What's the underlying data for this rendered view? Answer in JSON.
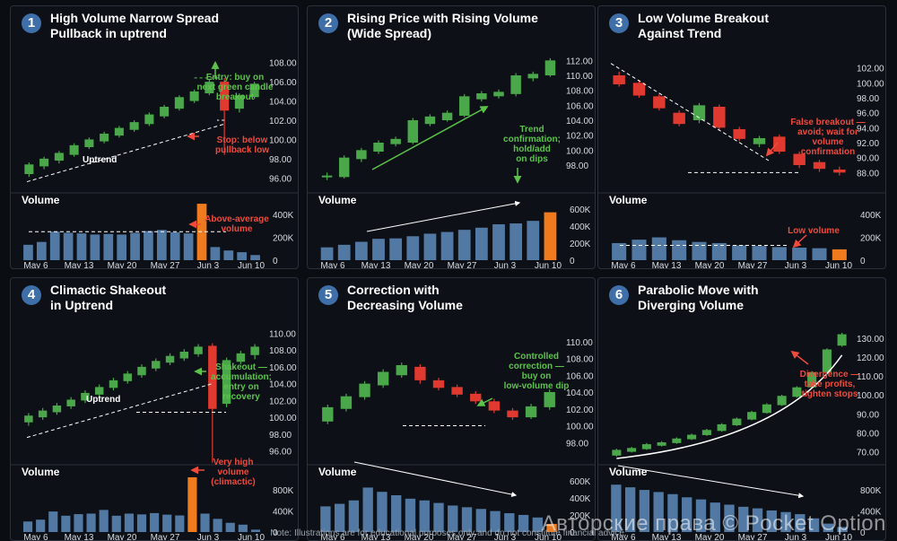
{
  "colors": {
    "up": "#4aa84a",
    "down": "#e0392f",
    "vol": "#5279a3",
    "vol_accent": "#f07a1e",
    "ann_green": "#5bc34a",
    "ann_red": "#f04a3c",
    "text": "#d8dde3"
  },
  "note": "Note: Illustrations are for educational purposes only and do not constitute financial advice.",
  "watermark": "Авторские права © Pocket Option",
  "chart_data": [
    {
      "type": "candlestick",
      "number": "1",
      "title": [
        "High Volume Narrow Spread",
        "Pullback in uptrend"
      ],
      "price_ticks": [
        "108.00",
        "106.00",
        "104.00",
        "102.00",
        "100.00",
        "98.00",
        "96.00"
      ],
      "ylim": [
        95,
        109
      ],
      "candles": [
        [
          96.4,
          97.4,
          96.1,
          97.6
        ],
        [
          97.2,
          98.0,
          96.9,
          98.2
        ],
        [
          97.8,
          98.6,
          97.5,
          98.8
        ],
        [
          98.4,
          99.4,
          98.2,
          99.6
        ],
        [
          99.2,
          100.0,
          99.0,
          100.2
        ],
        [
          99.8,
          100.6,
          99.6,
          100.8
        ],
        [
          100.4,
          101.2,
          100.2,
          101.4
        ],
        [
          101.0,
          101.8,
          100.8,
          102.0
        ],
        [
          101.6,
          102.6,
          101.4,
          102.8
        ],
        [
          102.4,
          103.4,
          102.2,
          103.6
        ],
        [
          103.2,
          104.4,
          103.0,
          104.6
        ],
        [
          104.0,
          105.0,
          103.8,
          105.2
        ],
        [
          104.8,
          106.0,
          104.6,
          106.3
        ],
        [
          106.0,
          103.0,
          98.4,
          106.4
        ],
        [
          103.2,
          104.6,
          102.8,
          104.8
        ],
        [
          104.4,
          105.8,
          104.2,
          106.0
        ]
      ],
      "volume_ticks": [
        "400K",
        "200K",
        "0"
      ],
      "volume_max": 480,
      "volume": [
        135,
        160,
        250,
        240,
        235,
        225,
        230,
        225,
        240,
        255,
        265,
        245,
        235,
        495,
        115,
        85,
        70,
        45
      ],
      "accent_bars": [
        13
      ],
      "dates": [
        "May 6",
        "May 13",
        "May 20",
        "May 27",
        "Jun 3",
        "Jun 10"
      ],
      "annotations": [
        {
          "text": [
            "Entry: buy on",
            "next green candle",
            "breakout"
          ],
          "color": "green",
          "x": 250,
          "y": 82
        },
        {
          "text": [
            "Stop: below",
            "pullback low"
          ],
          "color": "red",
          "x": 258,
          "y": 152
        },
        {
          "text": [
            "Uptrend"
          ],
          "color": "white",
          "x": 80,
          "y": 174
        },
        {
          "text": [
            "Above-average",
            "volume"
          ],
          "color": "red",
          "x": 252,
          "y": 240
        }
      ],
      "volume_label": "Volume"
    },
    {
      "type": "candlestick",
      "number": "2",
      "title": [
        "Rising Price with Rising Volume",
        "(Wide Spread)"
      ],
      "price_ticks": [
        "112.00",
        "110.00",
        "108.00",
        "106.00",
        "104.00",
        "102.00",
        "100.00",
        "98.00"
      ],
      "ylim": [
        95,
        113
      ],
      "candles": [
        [
          96.5,
          96.6,
          96.0,
          97.0
        ],
        [
          96.4,
          99.0,
          96.2,
          99.3
        ],
        [
          98.8,
          100.0,
          98.4,
          100.3
        ],
        [
          99.8,
          101.0,
          99.5,
          101.3
        ],
        [
          100.8,
          101.5,
          100.5,
          101.8
        ],
        [
          101.0,
          104.0,
          100.8,
          104.3
        ],
        [
          103.5,
          104.5,
          103.2,
          104.8
        ],
        [
          104.0,
          105.0,
          103.8,
          105.3
        ],
        [
          104.6,
          107.2,
          104.4,
          107.5
        ],
        [
          106.8,
          107.6,
          106.5,
          107.9
        ],
        [
          107.2,
          107.8,
          106.9,
          108.1
        ],
        [
          107.5,
          110.0,
          107.2,
          110.3
        ],
        [
          109.6,
          110.2,
          109.2,
          110.5
        ],
        [
          110.0,
          112.0,
          109.8,
          112.3
        ]
      ],
      "volume_ticks": [
        "600K",
        "400K",
        "200K",
        "0"
      ],
      "volume_max": 640,
      "volume": [
        150,
        180,
        215,
        250,
        255,
        280,
        310,
        330,
        355,
        380,
        420,
        430,
        460,
        560
      ],
      "accent_bars": [
        13
      ],
      "dates": [
        "May 6",
        "May 13",
        "May 20",
        "May 27",
        "Jun 3",
        "Jun 10"
      ],
      "annotations": [
        {
          "text": [
            "Trend",
            "confirmation;",
            "hold/add",
            "on dips"
          ],
          "color": "green",
          "x": 250,
          "y": 140
        }
      ],
      "volume_label": "Volume"
    },
    {
      "type": "candlestick",
      "number": "3",
      "title": [
        "Low Volume Breakout",
        "Against Trend"
      ],
      "price_ticks": [
        "102.00",
        "100.00",
        "98.00",
        "96.00",
        "94.00",
        "92.00",
        "90.00",
        "88.00"
      ],
      "ylim": [
        86,
        104
      ],
      "candles": [
        [
          101.0,
          99.8,
          99.5,
          101.5
        ],
        [
          100.0,
          98.3,
          98.0,
          100.4
        ],
        [
          98.2,
          96.6,
          96.3,
          98.5
        ],
        [
          96.0,
          94.5,
          94.2,
          96.3
        ],
        [
          95.0,
          97.0,
          94.6,
          97.3
        ],
        [
          96.8,
          94.0,
          93.6,
          97.1
        ],
        [
          93.8,
          92.5,
          92.2,
          94.1
        ],
        [
          91.8,
          92.6,
          91.4,
          92.9
        ],
        [
          92.8,
          90.8,
          90.5,
          93.1
        ],
        [
          90.5,
          89.0,
          88.6,
          90.8
        ],
        [
          89.4,
          88.5,
          88.1,
          89.7
        ],
        [
          88.4,
          88.0,
          87.6,
          88.8
        ]
      ],
      "volume_ticks": [
        "400K",
        "200K",
        "0"
      ],
      "volume_max": 480,
      "volume": [
        150,
        180,
        200,
        175,
        160,
        150,
        130,
        125,
        115,
        110,
        105,
        95
      ],
      "accent_bars": [
        11
      ],
      "dates": [
        "May 6",
        "May 13",
        "May 20",
        "May 27",
        "Jun 3",
        "Jun 10"
      ],
      "annotations": [
        {
          "text": [
            "False breakout —",
            "avoid; wait for",
            "volume",
            "confirmation"
          ],
          "color": "red",
          "x": 256,
          "y": 132
        },
        {
          "text": [
            "Low volume"
          ],
          "color": "red",
          "x": 240,
          "y": 253
        }
      ],
      "volume_label": "Volume"
    },
    {
      "type": "candlestick",
      "number": "4",
      "title": [
        "Climactic Shakeout",
        "in Uptrend"
      ],
      "price_ticks": [
        "110.00",
        "108.00",
        "106.00",
        "104.00",
        "102.00",
        "100.00",
        "98.00",
        "96.00"
      ],
      "ylim": [
        95,
        111
      ],
      "candles": [
        [
          99.4,
          100.2,
          99.0,
          100.5
        ],
        [
          100.0,
          100.8,
          99.7,
          101.1
        ],
        [
          100.6,
          101.4,
          100.3,
          101.7
        ],
        [
          101.3,
          102.1,
          101.0,
          102.4
        ],
        [
          102.0,
          102.9,
          101.7,
          103.2
        ],
        [
          102.7,
          103.6,
          102.4,
          103.9
        ],
        [
          103.5,
          104.4,
          103.2,
          104.7
        ],
        [
          104.3,
          105.2,
          104.0,
          105.5
        ],
        [
          105.0,
          106.0,
          104.7,
          106.3
        ],
        [
          105.8,
          106.7,
          105.5,
          107.0
        ],
        [
          106.5,
          107.3,
          106.2,
          107.6
        ],
        [
          107.0,
          107.8,
          106.7,
          108.1
        ],
        [
          107.5,
          108.4,
          107.2,
          108.7
        ],
        [
          108.5,
          101.0,
          94.6,
          108.8
        ],
        [
          101.6,
          106.8,
          101.2,
          107.1
        ],
        [
          106.6,
          107.6,
          106.3,
          107.9
        ],
        [
          107.4,
          108.4,
          106.9,
          108.7
        ]
      ],
      "volume_ticks": [
        "800K",
        "400K",
        "0"
      ],
      "volume_max": 1040,
      "volume": [
        200,
        235,
        390,
        310,
        340,
        350,
        420,
        310,
        350,
        335,
        360,
        330,
        315,
        1040,
        350,
        250,
        175,
        140,
        45
      ],
      "accent_bars": [
        13
      ],
      "dates": [
        "May 6",
        "May 13",
        "May 20",
        "May 27",
        "Jun 3",
        "Jun 10"
      ],
      "annotations": [
        {
          "text": [
            "Shakeout —",
            "accumulation;",
            "entry on",
            "recovery"
          ],
          "color": "green",
          "x": 257,
          "y": 102
        },
        {
          "text": [
            "Uptrend"
          ],
          "color": "white",
          "x": 84,
          "y": 138
        },
        {
          "text": [
            "Very high",
            "volume",
            "(climactic)"
          ],
          "color": "red",
          "x": 248,
          "y": 208
        }
      ],
      "volume_label": "Volume"
    },
    {
      "type": "candlestick",
      "number": "5",
      "title": [
        "Correction with",
        "Decreasing Volume"
      ],
      "price_ticks": [
        "110.00",
        "108.00",
        "106.00",
        "104.00",
        "102.00",
        "100.00",
        "98.00"
      ],
      "ylim": [
        96,
        112
      ],
      "candles": [
        [
          100.5,
          102.2,
          100.2,
          102.5
        ],
        [
          102.0,
          103.5,
          101.7,
          103.8
        ],
        [
          103.4,
          105.0,
          103.1,
          105.3
        ],
        [
          104.8,
          106.4,
          104.5,
          106.7
        ],
        [
          106.0,
          107.2,
          105.7,
          107.5
        ],
        [
          107.0,
          105.4,
          105.0,
          107.3
        ],
        [
          105.4,
          104.5,
          104.2,
          105.7
        ],
        [
          104.6,
          103.7,
          103.4,
          104.9
        ],
        [
          103.8,
          102.9,
          102.6,
          104.1
        ],
        [
          102.9,
          101.8,
          101.5,
          103.2
        ],
        [
          101.8,
          101.0,
          100.7,
          102.1
        ],
        [
          101.0,
          102.3,
          100.8,
          102.6
        ],
        [
          102.2,
          104.0,
          101.9,
          104.3
        ]
      ],
      "volume_ticks": [
        "600K",
        "400K",
        "200K",
        "0"
      ],
      "volume_max": 640,
      "volume": [
        300,
        330,
        370,
        520,
        470,
        430,
        390,
        370,
        340,
        310,
        290,
        270,
        245,
        220,
        200,
        170,
        95
      ],
      "accent_bars": [
        16
      ],
      "dates": [
        "May 6",
        "May 13",
        "May 20",
        "May 27",
        "Jun 3",
        "Jun 10"
      ],
      "annotations": [
        {
          "text": [
            "Controlled",
            "correction —",
            "buy on",
            "low-volume dip"
          ],
          "color": "green",
          "x": 255,
          "y": 90
        }
      ],
      "volume_label": "Volume"
    },
    {
      "type": "candlestick",
      "number": "6",
      "title": [
        "Parabolic Move with",
        "Diverging Volume"
      ],
      "price_ticks": [
        "130.00",
        "120.00",
        "110.00",
        "100.00",
        "90.00",
        "80.00",
        "70.00"
      ],
      "ylim": [
        66,
        137
      ],
      "candles": [
        [
          68.0,
          71.0,
          67.5,
          71.6
        ],
        [
          70.0,
          72.0,
          69.6,
          72.6
        ],
        [
          71.4,
          74.0,
          71.0,
          74.6
        ],
        [
          73.2,
          75.0,
          72.8,
          75.6
        ],
        [
          74.6,
          77.0,
          74.2,
          77.6
        ],
        [
          76.6,
          79.0,
          76.2,
          79.6
        ],
        [
          78.8,
          81.5,
          78.4,
          82.1
        ],
        [
          81.0,
          84.5,
          80.6,
          85.1
        ],
        [
          84.0,
          87.5,
          83.6,
          88.1
        ],
        [
          87.0,
          91.0,
          86.6,
          91.6
        ],
        [
          90.5,
          95.0,
          90.1,
          95.6
        ],
        [
          94.6,
          99.5,
          94.2,
          100.1
        ],
        [
          99.0,
          104.0,
          98.6,
          104.6
        ],
        [
          104.0,
          112.0,
          103.6,
          112.6
        ],
        [
          112.0,
          124.0,
          111.6,
          124.6
        ],
        [
          126.0,
          132.0,
          125.4,
          132.8
        ]
      ],
      "volume_ticks": [
        "800K",
        "400K",
        "0"
      ],
      "volume_max": 1040,
      "volume": [
        900,
        850,
        800,
        760,
        720,
        660,
        620,
        560,
        520,
        480,
        450,
        410,
        380,
        340,
        260,
        160,
        95
      ],
      "accent_bars": [],
      "dates": [
        "May 6",
        "May 13",
        "May 20",
        "May 27",
        "Jun 3",
        "Jun 10"
      ],
      "annotations": [
        {
          "text": [
            "Divergence —",
            "take profits,",
            "tighten stops"
          ],
          "color": "red",
          "x": 258,
          "y": 110
        }
      ],
      "volume_label": "Volume"
    }
  ]
}
